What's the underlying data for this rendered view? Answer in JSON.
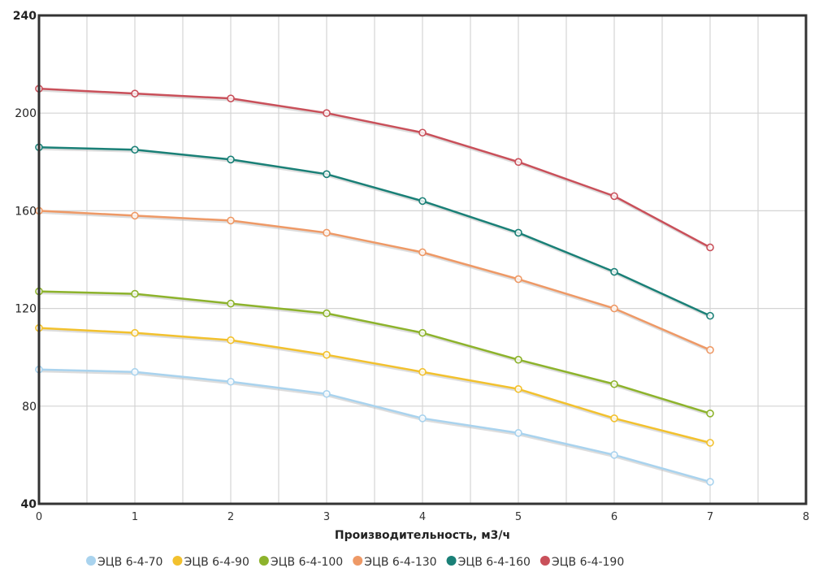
{
  "chart_data": {
    "type": "line",
    "title": "",
    "xlabel": "Производительность, м3/ч",
    "ylabel": "",
    "xlim": [
      0,
      8
    ],
    "ylim": [
      40,
      240
    ],
    "x_ticks": [
      "0",
      "1",
      "2",
      "3",
      "4",
      "5",
      "6",
      "7",
      "8"
    ],
    "y_ticks": [
      "40",
      "80",
      "120",
      "160",
      "200",
      "240"
    ],
    "grid": true,
    "legend_position": "bottom",
    "x": [
      0,
      1,
      2,
      3,
      4,
      5,
      6,
      7
    ],
    "series": [
      {
        "name": "ЭЦВ 6-4-70",
        "color": "#a9d3ee",
        "values": [
          95,
          94,
          90,
          85,
          75,
          69,
          60,
          49
        ]
      },
      {
        "name": "ЭЦВ 6-4-90",
        "color": "#f2c12e",
        "values": [
          112,
          110,
          107,
          101,
          94,
          87,
          75,
          65
        ]
      },
      {
        "name": "ЭЦВ 6-4-100",
        "color": "#8db32c",
        "values": [
          127,
          126,
          122,
          118,
          110,
          99,
          89,
          77
        ]
      },
      {
        "name": "ЭЦВ 6-4-130",
        "color": "#ee9966",
        "values": [
          160,
          158,
          156,
          151,
          143,
          132,
          120,
          103
        ]
      },
      {
        "name": "ЭЦВ 6-4-160",
        "color": "#1a8077",
        "values": [
          186,
          185,
          181,
          175,
          164,
          151,
          135,
          117
        ]
      },
      {
        "name": "ЭЦВ 6-4-190",
        "color": "#c9505a",
        "values": [
          210,
          208,
          206,
          200,
          192,
          180,
          166,
          145
        ]
      }
    ]
  }
}
